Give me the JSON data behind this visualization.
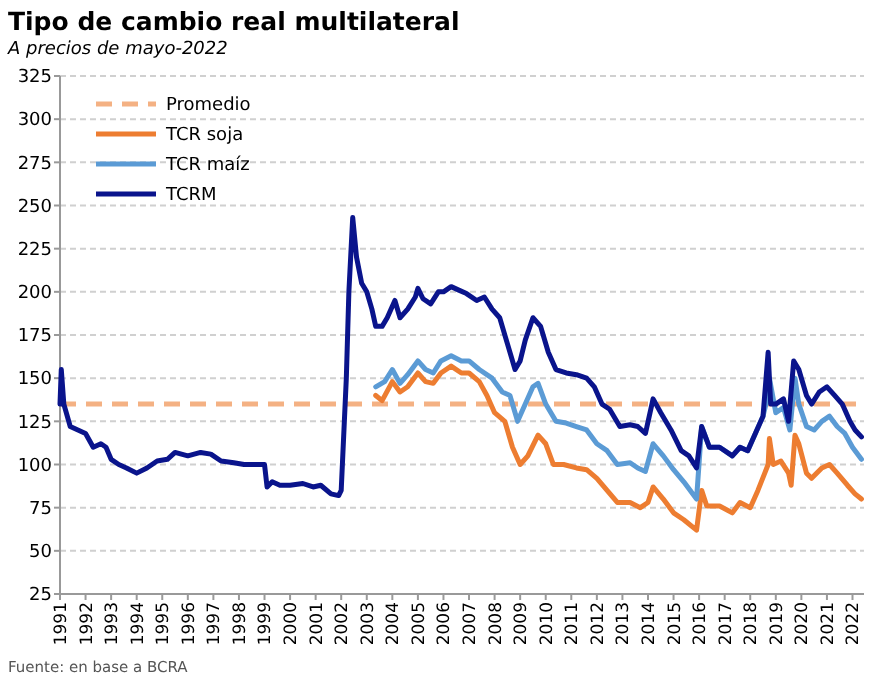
{
  "chart_data": {
    "type": "line",
    "title": "Tipo de cambio real multilateral",
    "subtitle": "A precios de mayo-2022",
    "annotations": [
      "Fuente: en base a BCRA"
    ],
    "xlim": [
      1991,
      2022.45
    ],
    "xticks": [
      1991,
      1992,
      1993,
      1994,
      1995,
      1996,
      1997,
      1998,
      1999,
      2000,
      2001,
      2002,
      2003,
      2004,
      2005,
      2006,
      2007,
      2008,
      2009,
      2010,
      2011,
      2012,
      2013,
      2014,
      2015,
      2016,
      2017,
      2018,
      2019,
      2020,
      2021,
      2022
    ],
    "ylim": [
      25,
      325
    ],
    "yticks": [
      25,
      50,
      75,
      100,
      125,
      150,
      175,
      200,
      225,
      250,
      275,
      300,
      325
    ],
    "grid": "y",
    "legend": "top left",
    "line_style": "solid",
    "marker": "none",
    "ref_lines": [
      {
        "axis": "y",
        "value": 135,
        "label": "Promedio",
        "color": "#f4b183",
        "line_style": "dashed"
      }
    ],
    "series": [
      {
        "name": "TCR soja",
        "color": "#ed7d31",
        "x": [
          2003.35,
          2003.6,
          2004.0,
          2004.3,
          2004.6,
          2005.0,
          2005.3,
          2005.6,
          2005.9,
          2006.3,
          2006.7,
          2007.0,
          2007.4,
          2007.7,
          2008.0,
          2008.4,
          2008.7,
          2009.0,
          2009.3,
          2009.7,
          2010.0,
          2010.3,
          2010.7,
          2011.2,
          2011.6,
          2012.0,
          2012.4,
          2012.8,
          2013.3,
          2013.7,
          2014.0,
          2014.2,
          2014.6,
          2015.0,
          2015.4,
          2015.9,
          2016.1,
          2016.3,
          2016.8,
          2017.3,
          2017.6,
          2018.0,
          2018.3,
          2018.7,
          2018.75,
          2018.9,
          2019.2,
          2019.5,
          2019.6,
          2019.75,
          2019.9,
          2020.2,
          2020.4,
          2020.8,
          2021.1,
          2021.4,
          2021.8,
          2022.1,
          2022.35
        ],
        "values": [
          140,
          137,
          148,
          142,
          145,
          153,
          148,
          147,
          153,
          157,
          153,
          153,
          148,
          140,
          130,
          125,
          110,
          100,
          105,
          117,
          112,
          100,
          100,
          98,
          97,
          92,
          85,
          78,
          78,
          75,
          78,
          87,
          80,
          72,
          68,
          62,
          85,
          76,
          76,
          72,
          78,
          75,
          85,
          100,
          115,
          100,
          102,
          95,
          88,
          117,
          112,
          95,
          92,
          98,
          100,
          95,
          88,
          83,
          80
        ]
      },
      {
        "name": "TCR maíz",
        "color": "#5b9bd5",
        "x": [
          2003.35,
          2003.7,
          2004.0,
          2004.3,
          2004.6,
          2005.0,
          2005.3,
          2005.6,
          2005.9,
          2006.3,
          2006.7,
          2007.0,
          2007.4,
          2007.9,
          2008.3,
          2008.6,
          2008.9,
          2009.2,
          2009.5,
          2009.7,
          2010.0,
          2010.4,
          2010.8,
          2011.2,
          2011.6,
          2012.0,
          2012.4,
          2012.8,
          2013.3,
          2013.6,
          2013.9,
          2014.2,
          2014.6,
          2015.0,
          2015.4,
          2015.9,
          2016.1,
          2016.4,
          2016.8,
          2017.3,
          2017.6,
          2017.9,
          2018.2,
          2018.5,
          2018.7,
          2018.75,
          2019.0,
          2019.3,
          2019.55,
          2019.75,
          2019.9,
          2020.2,
          2020.5,
          2020.8,
          2021.1,
          2021.4,
          2021.7,
          2022.0,
          2022.35
        ],
        "values": [
          145,
          148,
          155,
          147,
          152,
          160,
          155,
          153,
          160,
          163,
          160,
          160,
          155,
          150,
          142,
          140,
          125,
          135,
          145,
          147,
          135,
          125,
          124,
          122,
          120,
          112,
          108,
          100,
          101,
          98,
          96,
          112,
          105,
          97,
          90,
          80,
          122,
          110,
          110,
          105,
          110,
          108,
          118,
          128,
          140,
          150,
          130,
          133,
          120,
          150,
          135,
          122,
          120,
          125,
          128,
          122,
          118,
          110,
          103
        ]
      },
      {
        "name": "TCRM",
        "color": "#0a148c",
        "x": [
          1991.0,
          1991.05,
          1991.15,
          1991.4,
          1991.7,
          1992.0,
          1992.3,
          1992.6,
          1992.8,
          1993.0,
          1993.3,
          1993.6,
          1994.0,
          1994.4,
          1994.8,
          1995.2,
          1995.5,
          1996.0,
          1996.5,
          1996.9,
          1997.3,
          1997.8,
          1998.2,
          1998.7,
          1999.0,
          1999.1,
          1999.3,
          1999.6,
          2000.0,
          2000.5,
          2000.9,
          2001.2,
          2001.6,
          2001.9,
          2002.0,
          2002.2,
          2002.3,
          2002.45,
          2002.6,
          2002.8,
          2003.0,
          2003.2,
          2003.35,
          2003.6,
          2003.8,
          2004.1,
          2004.3,
          2004.6,
          2004.9,
          2005.0,
          2005.2,
          2005.5,
          2005.8,
          2006.0,
          2006.3,
          2006.6,
          2006.9,
          2007.3,
          2007.6,
          2007.9,
          2008.2,
          2008.5,
          2008.8,
          2009.0,
          2009.2,
          2009.5,
          2009.8,
          2010.1,
          2010.4,
          2010.8,
          2011.2,
          2011.6,
          2011.9,
          2012.2,
          2012.5,
          2012.9,
          2013.3,
          2013.6,
          2013.9,
          2014.2,
          2014.5,
          2014.9,
          2015.3,
          2015.6,
          2015.9,
          2016.1,
          2016.4,
          2016.8,
          2017.3,
          2017.6,
          2017.9,
          2018.2,
          2018.5,
          2018.7,
          2018.8,
          2019.0,
          2019.3,
          2019.5,
          2019.7,
          2019.9,
          2020.2,
          2020.4,
          2020.7,
          2021.0,
          2021.3,
          2021.6,
          2021.9,
          2022.1,
          2022.35
        ],
        "values": [
          135,
          155,
          135,
          122,
          120,
          118,
          110,
          112,
          110,
          103,
          100,
          98,
          95,
          98,
          102,
          103,
          107,
          105,
          107,
          106,
          102,
          101,
          100,
          100,
          100,
          87,
          90,
          88,
          88,
          89,
          87,
          88,
          83,
          82,
          85,
          150,
          200,
          243,
          220,
          205,
          200,
          190,
          180,
          180,
          185,
          195,
          185,
          190,
          197,
          202,
          196,
          193,
          200,
          200,
          203,
          201,
          199,
          195,
          197,
          190,
          185,
          170,
          155,
          160,
          172,
          185,
          180,
          165,
          155,
          153,
          152,
          150,
          145,
          135,
          132,
          122,
          123,
          122,
          118,
          138,
          130,
          120,
          108,
          105,
          98,
          122,
          110,
          110,
          105,
          110,
          108,
          118,
          128,
          165,
          135,
          135,
          138,
          125,
          160,
          155,
          140,
          135,
          142,
          145,
          140,
          135,
          125,
          120,
          116
        ]
      }
    ]
  }
}
